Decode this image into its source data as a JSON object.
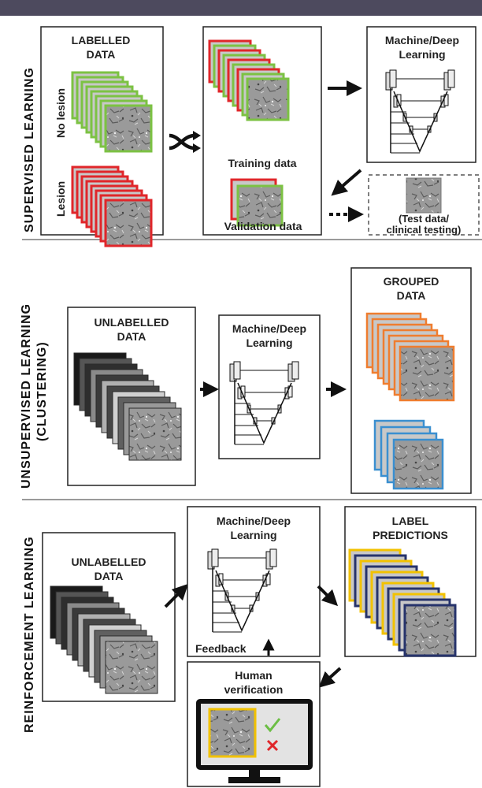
{
  "colors": {
    "top_bar": "#4d4a5e",
    "green": "#7cc243",
    "red": "#e0262a",
    "orange": "#ef7d2f",
    "blue": "#3a8fd0",
    "yellow": "#f2c200",
    "navy": "#26336b",
    "divider": "#9a9a9a",
    "check": "#6cbe45",
    "cross": "#e0262a"
  },
  "sections": {
    "supervised": {
      "title": "SUPERVISED LEARNING",
      "labelled_title_line1": "LABELLED",
      "labelled_title_line2": "DATA",
      "no_lesion": "No lesion",
      "lesion": "Lesion",
      "training_label": "Training data",
      "validation_label": "Validation data",
      "model_line1": "Machine/Deep",
      "model_line2": "Learning",
      "test_line1": "(Test data/",
      "test_line2": "clinical testing)"
    },
    "unsupervised": {
      "title_line1": "UNSUPERVISED LEARNING",
      "title_line2": "(CLUSTERING)",
      "unlabelled_line1": "UNLABELLED",
      "unlabelled_line2": "DATA",
      "model_line1": "Machine/Deep",
      "model_line2": "Learning",
      "grouped_line1": "GROUPED",
      "grouped_line2": "DATA"
    },
    "reinforcement": {
      "title": "REINFORCEMENT LEARNING",
      "unlabelled_line1": "UNLABELLED",
      "unlabelled_line2": "DATA",
      "model_line1": "Machine/Deep",
      "model_line2": "Learning",
      "predictions_line1": "LABEL",
      "predictions_line2": "PREDICTIONS",
      "feedback": "Feedback",
      "human_line1": "Human",
      "human_line2": "verification"
    }
  }
}
